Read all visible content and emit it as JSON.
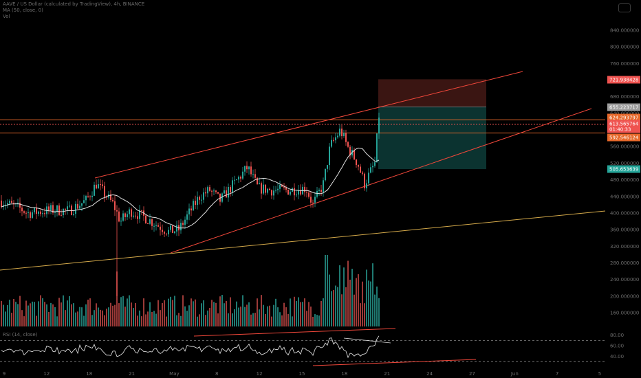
{
  "legend": {
    "symbol_line": "AAVE / US Dollar (calculated by TradingView), 4h, BINANCE",
    "ma_line": "MA (50, close, 0)",
    "vol_line": "Vol"
  },
  "rsi_label": "RSI (14, close)",
  "colors": {
    "up": "#26a69a",
    "down": "#ef5350",
    "ma": "#e0e0e0",
    "channel": "#f0473a",
    "horizontal": "#e6682a",
    "support": "#d4a94a",
    "stop_zone": "#3a1512",
    "target_zone": "#0b3330"
  },
  "chart_data": {
    "type": "candlestick",
    "price_axis_ticks": [
      "840.000000",
      "800.000000",
      "760.000000",
      "720.000000",
      "680.000000",
      "640.000000",
      "600.000000",
      "560.000000",
      "520.000000",
      "480.000000",
      "440.000000",
      "400.000000",
      "360.000000",
      "320.000000",
      "280.000000",
      "240.000000",
      "200.000000",
      "160.000000"
    ],
    "rsi_axis_ticks": [
      "80.00",
      "60.00",
      "40.00"
    ],
    "time_axis_ticks": [
      "9",
      "12",
      "18",
      "21",
      "May",
      "8",
      "12",
      "15",
      "18",
      "21",
      "24",
      "27",
      "Jun",
      "7",
      "5"
    ],
    "price_tags": [
      {
        "label": "721.938428",
        "value": 721.94,
        "color": "#ef5350"
      },
      {
        "label": "655.223717",
        "value": 655.22,
        "color": "#9e9e9e"
      },
      {
        "label": "624.293797",
        "value": 624.29,
        "color": "#e6682a"
      },
      {
        "label": "613.565764",
        "value": 613.57,
        "color": "#ef5350"
      },
      {
        "label": "01:40:33",
        "value": 613.57,
        "color": "#ef5350"
      },
      {
        "label": "592.546124",
        "value": 592.55,
        "color": "#e6682a"
      },
      {
        "label": "505.653639",
        "value": 505.65,
        "color": "#26a69a"
      }
    ],
    "horizontal_levels": [
      624.29,
      613.57,
      592.55
    ],
    "position": {
      "stop": 721.94,
      "entry": 655.22,
      "target": 505.65
    },
    "price_range": [
      140,
      860
    ],
    "rsi_range": [
      30,
      90
    ],
    "grid": false,
    "legend_placement": "top-left"
  }
}
